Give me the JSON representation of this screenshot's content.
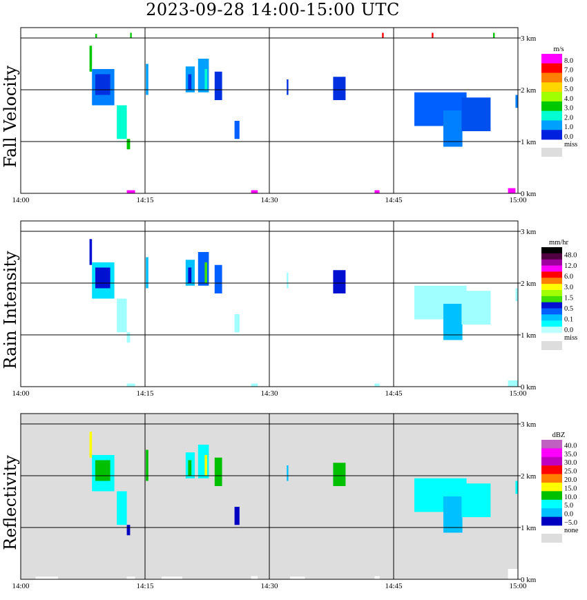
{
  "title": "2023-09-28  14:00-15:00 UTC",
  "x_ticks": [
    "14:00",
    "14:15",
    "14:30",
    "14:45",
    "15:00"
  ],
  "y_ticks": [
    "0 km",
    "1 km",
    "2 km",
    "3 km"
  ],
  "chart_data": [
    {
      "type": "heatmap",
      "ylabel": "Fall Velocity",
      "xlabel": "",
      "xlim": [
        "14:00",
        "15:00"
      ],
      "ylim": [
        0,
        3.2
      ],
      "y_unit": "km",
      "grid": true,
      "missing_background": false,
      "colorbar": {
        "unit": "m/s",
        "labels": [
          "8.0",
          "7.0",
          "6.0",
          "5.0",
          "4.0",
          "3.0",
          "2.0",
          "1.0",
          "0.0"
        ],
        "colors": [
          "#ff00ff",
          "#ff0000",
          "#ff8000",
          "#ffd700",
          "#a0ff00",
          "#00c800",
          "#00ffd0",
          "#00a0ff",
          "#0020e0"
        ],
        "missing_label": "miss",
        "missing_color": "#dddddd"
      },
      "echoes": [
        {
          "t0": 8.3,
          "t1": 8.6,
          "h0": 2.35,
          "h1": 2.85,
          "color": "#00c800"
        },
        {
          "t0": 8.6,
          "t1": 11.3,
          "h0": 1.7,
          "h1": 2.4,
          "color": "#0080ff"
        },
        {
          "t0": 9.0,
          "t1": 10.8,
          "h0": 1.9,
          "h1": 2.3,
          "color": "#0030e0"
        },
        {
          "t0": 11.6,
          "t1": 12.8,
          "h0": 1.05,
          "h1": 1.7,
          "color": "#00ffd0"
        },
        {
          "t0": 12.8,
          "t1": 13.2,
          "h0": 0.85,
          "h1": 1.05,
          "color": "#00c800"
        },
        {
          "t0": 15.1,
          "t1": 15.4,
          "h0": 1.9,
          "h1": 2.5,
          "color": "#00a0ff"
        },
        {
          "t0": 19.9,
          "t1": 21.0,
          "h0": 1.95,
          "h1": 2.45,
          "color": "#00a0ff"
        },
        {
          "t0": 20.2,
          "t1": 20.6,
          "h0": 2.0,
          "h1": 2.3,
          "color": "#0030e0"
        },
        {
          "t0": 21.4,
          "t1": 22.7,
          "h0": 1.95,
          "h1": 2.6,
          "color": "#00a0ff"
        },
        {
          "t0": 22.2,
          "t1": 22.5,
          "h0": 2.0,
          "h1": 2.4,
          "color": "#00ffd0"
        },
        {
          "t0": 23.4,
          "t1": 24.3,
          "h0": 1.8,
          "h1": 2.35,
          "color": "#0030e0"
        },
        {
          "t0": 25.8,
          "t1": 26.4,
          "h0": 1.05,
          "h1": 1.4,
          "color": "#0060ff"
        },
        {
          "t0": 32.1,
          "t1": 32.3,
          "h0": 1.9,
          "h1": 2.2,
          "color": "#0030e0"
        },
        {
          "t0": 37.7,
          "t1": 39.2,
          "h0": 1.8,
          "h1": 2.25,
          "color": "#0030e0"
        },
        {
          "t0": 47.5,
          "t1": 53.8,
          "h0": 1.3,
          "h1": 1.95,
          "color": "#0060ff"
        },
        {
          "t0": 51.0,
          "t1": 53.3,
          "h0": 0.9,
          "h1": 1.6,
          "color": "#0080ff"
        },
        {
          "t0": 53.2,
          "t1": 56.7,
          "h0": 1.2,
          "h1": 1.85,
          "color": "#0050f0"
        },
        {
          "t0": 59.7,
          "t1": 60.0,
          "h0": 1.65,
          "h1": 1.9,
          "color": "#0080ff"
        },
        {
          "t0": 12.8,
          "t1": 13.8,
          "h0": 0.0,
          "h1": 0.06,
          "color": "#ff00ff"
        },
        {
          "t0": 27.8,
          "t1": 28.6,
          "h0": 0.0,
          "h1": 0.06,
          "color": "#ff00ff"
        },
        {
          "t0": 42.7,
          "t1": 43.3,
          "h0": 0.0,
          "h1": 0.06,
          "color": "#ff00ff"
        },
        {
          "t0": 58.8,
          "t1": 59.7,
          "h0": 0.0,
          "h1": 0.1,
          "color": "#ff00ff"
        },
        {
          "t0": 9.0,
          "t1": 9.2,
          "h0": 3.0,
          "h1": 3.08,
          "color": "#00c800"
        },
        {
          "t0": 13.2,
          "t1": 13.4,
          "h0": 3.0,
          "h1": 3.1,
          "color": "#00c800"
        },
        {
          "t0": 43.6,
          "t1": 43.8,
          "h0": 3.0,
          "h1": 3.1,
          "color": "#ff0000"
        },
        {
          "t0": 49.6,
          "t1": 49.8,
          "h0": 3.0,
          "h1": 3.1,
          "color": "#ff0000"
        },
        {
          "t0": 57.0,
          "t1": 57.2,
          "h0": 3.0,
          "h1": 3.1,
          "color": "#00c800"
        }
      ]
    },
    {
      "type": "heatmap",
      "ylabel": "Rain Intensity",
      "xlabel": "",
      "xlim": [
        "14:00",
        "15:00"
      ],
      "ylim": [
        0,
        3.2
      ],
      "y_unit": "km",
      "grid": true,
      "missing_background": false,
      "colorbar": {
        "unit": "mm/hr",
        "labels": [
          "48.0",
          "12.0",
          "6.0",
          "3.0",
          "1.5",
          "0.5",
          "0.1",
          "0.0"
        ],
        "colors": [
          "#000000",
          "#500040",
          "#a000a0",
          "#ff00ff",
          "#ff0000",
          "#ff8000",
          "#ffff00",
          "#a0ff00",
          "#40e000",
          "#0010d0",
          "#0060ff",
          "#00c0ff",
          "#00ffff",
          "#c0ffff"
        ],
        "missing_label": "miss",
        "missing_color": "#dddddd"
      },
      "echoes": [
        {
          "t0": 8.3,
          "t1": 8.6,
          "h0": 2.35,
          "h1": 2.85,
          "color": "#0010d0"
        },
        {
          "t0": 8.6,
          "t1": 11.3,
          "h0": 1.7,
          "h1": 2.4,
          "color": "#00e0ff"
        },
        {
          "t0": 9.0,
          "t1": 10.8,
          "h0": 1.9,
          "h1": 2.3,
          "color": "#0010d0"
        },
        {
          "t0": 11.6,
          "t1": 12.8,
          "h0": 1.05,
          "h1": 1.7,
          "color": "#a0ffff"
        },
        {
          "t0": 12.8,
          "t1": 13.2,
          "h0": 0.85,
          "h1": 1.05,
          "color": "#a0ffff"
        },
        {
          "t0": 15.1,
          "t1": 15.4,
          "h0": 1.9,
          "h1": 2.5,
          "color": "#00c0ff"
        },
        {
          "t0": 19.9,
          "t1": 21.0,
          "h0": 1.95,
          "h1": 2.45,
          "color": "#00c0ff"
        },
        {
          "t0": 20.2,
          "t1": 20.6,
          "h0": 2.0,
          "h1": 2.3,
          "color": "#0010d0"
        },
        {
          "t0": 21.4,
          "t1": 22.7,
          "h0": 1.95,
          "h1": 2.6,
          "color": "#0060ff"
        },
        {
          "t0": 22.2,
          "t1": 22.5,
          "h0": 2.0,
          "h1": 2.4,
          "color": "#40e000"
        },
        {
          "t0": 23.4,
          "t1": 24.3,
          "h0": 1.8,
          "h1": 2.35,
          "color": "#0060ff"
        },
        {
          "t0": 25.8,
          "t1": 26.4,
          "h0": 1.05,
          "h1": 1.4,
          "color": "#a0ffff"
        },
        {
          "t0": 32.1,
          "t1": 32.3,
          "h0": 1.9,
          "h1": 2.2,
          "color": "#a0ffff"
        },
        {
          "t0": 37.7,
          "t1": 39.2,
          "h0": 1.8,
          "h1": 2.25,
          "color": "#0010d0"
        },
        {
          "t0": 47.5,
          "t1": 53.8,
          "h0": 1.3,
          "h1": 1.95,
          "color": "#a0ffff"
        },
        {
          "t0": 51.0,
          "t1": 53.3,
          "h0": 0.9,
          "h1": 1.6,
          "color": "#00c0ff"
        },
        {
          "t0": 53.2,
          "t1": 56.7,
          "h0": 1.2,
          "h1": 1.85,
          "color": "#a0ffff"
        },
        {
          "t0": 59.7,
          "t1": 60.0,
          "h0": 1.65,
          "h1": 1.9,
          "color": "#a0ffff"
        },
        {
          "t0": 12.8,
          "t1": 13.8,
          "h0": 0.0,
          "h1": 0.06,
          "color": "#a0ffff"
        },
        {
          "t0": 27.8,
          "t1": 28.6,
          "h0": 0.0,
          "h1": 0.06,
          "color": "#a0ffff"
        },
        {
          "t0": 42.7,
          "t1": 43.3,
          "h0": 0.0,
          "h1": 0.06,
          "color": "#a0ffff"
        },
        {
          "t0": 58.8,
          "t1": 60.0,
          "h0": 0.0,
          "h1": 0.12,
          "color": "#a0ffff"
        }
      ]
    },
    {
      "type": "heatmap",
      "ylabel": "Reflectivity",
      "xlabel": "",
      "xlim": [
        "14:00",
        "15:00"
      ],
      "ylim": [
        0,
        3.2
      ],
      "y_unit": "km",
      "grid": true,
      "missing_background": true,
      "colorbar": {
        "unit": "dBZ",
        "labels": [
          "40.0",
          "35.0",
          "30.0",
          "25.0",
          "20.0",
          "15.0",
          "10.0",
          "5.0",
          "0.0",
          "−5.0"
        ],
        "colors": [
          "#c060c0",
          "#ff00ff",
          "#c000c0",
          "#ff0000",
          "#ff8000",
          "#ffff00",
          "#00c000",
          "#00ffff",
          "#00c0ff",
          "#0000c0"
        ],
        "missing_label": "none",
        "missing_color": "#dddddd"
      },
      "echoes": [
        {
          "t0": 8.3,
          "t1": 8.6,
          "h0": 2.35,
          "h1": 2.85,
          "color": "#ffff00"
        },
        {
          "t0": 8.6,
          "t1": 11.3,
          "h0": 1.7,
          "h1": 2.4,
          "color": "#00ffff"
        },
        {
          "t0": 9.0,
          "t1": 10.8,
          "h0": 1.9,
          "h1": 2.3,
          "color": "#00c000"
        },
        {
          "t0": 11.6,
          "t1": 12.8,
          "h0": 1.05,
          "h1": 1.7,
          "color": "#00ffff"
        },
        {
          "t0": 12.8,
          "t1": 13.2,
          "h0": 0.85,
          "h1": 1.05,
          "color": "#0000c0"
        },
        {
          "t0": 15.1,
          "t1": 15.4,
          "h0": 1.9,
          "h1": 2.5,
          "color": "#00c000"
        },
        {
          "t0": 19.9,
          "t1": 21.0,
          "h0": 1.95,
          "h1": 2.45,
          "color": "#00ffff"
        },
        {
          "t0": 20.2,
          "t1": 20.6,
          "h0": 2.0,
          "h1": 2.3,
          "color": "#00c000"
        },
        {
          "t0": 21.4,
          "t1": 22.7,
          "h0": 1.95,
          "h1": 2.6,
          "color": "#00ffff"
        },
        {
          "t0": 22.2,
          "t1": 22.5,
          "h0": 2.0,
          "h1": 2.4,
          "color": "#ffff00"
        },
        {
          "t0": 23.4,
          "t1": 24.3,
          "h0": 1.8,
          "h1": 2.35,
          "color": "#00c000"
        },
        {
          "t0": 25.8,
          "t1": 26.4,
          "h0": 1.05,
          "h1": 1.4,
          "color": "#0000c0"
        },
        {
          "t0": 32.1,
          "t1": 32.3,
          "h0": 1.9,
          "h1": 2.2,
          "color": "#00c0ff"
        },
        {
          "t0": 37.7,
          "t1": 39.2,
          "h0": 1.8,
          "h1": 2.25,
          "color": "#00c000"
        },
        {
          "t0": 47.5,
          "t1": 53.8,
          "h0": 1.3,
          "h1": 1.95,
          "color": "#00ffff"
        },
        {
          "t0": 51.0,
          "t1": 53.3,
          "h0": 0.9,
          "h1": 1.6,
          "color": "#00c0ff"
        },
        {
          "t0": 53.2,
          "t1": 56.7,
          "h0": 1.2,
          "h1": 1.85,
          "color": "#00ffff"
        },
        {
          "t0": 59.7,
          "t1": 60.0,
          "h0": 1.65,
          "h1": 1.9,
          "color": "#00ffff"
        },
        {
          "t0": 1.8,
          "t1": 4.5,
          "h0": 0.0,
          "h1": 0.05,
          "color": "#ffffff"
        },
        {
          "t0": 12.8,
          "t1": 13.8,
          "h0": 0.0,
          "h1": 0.05,
          "color": "#ffffff"
        },
        {
          "t0": 17.0,
          "t1": 19.5,
          "h0": 0.0,
          "h1": 0.05,
          "color": "#ffffff"
        },
        {
          "t0": 27.8,
          "t1": 28.6,
          "h0": 0.0,
          "h1": 0.06,
          "color": "#ffffff"
        },
        {
          "t0": 32.5,
          "t1": 34.3,
          "h0": 0.0,
          "h1": 0.05,
          "color": "#ffffff"
        },
        {
          "t0": 42.7,
          "t1": 43.3,
          "h0": 0.0,
          "h1": 0.06,
          "color": "#ffffff"
        },
        {
          "t0": 58.8,
          "t1": 60.0,
          "h0": 0.0,
          "h1": 0.2,
          "color": "#ffffff"
        }
      ]
    }
  ]
}
